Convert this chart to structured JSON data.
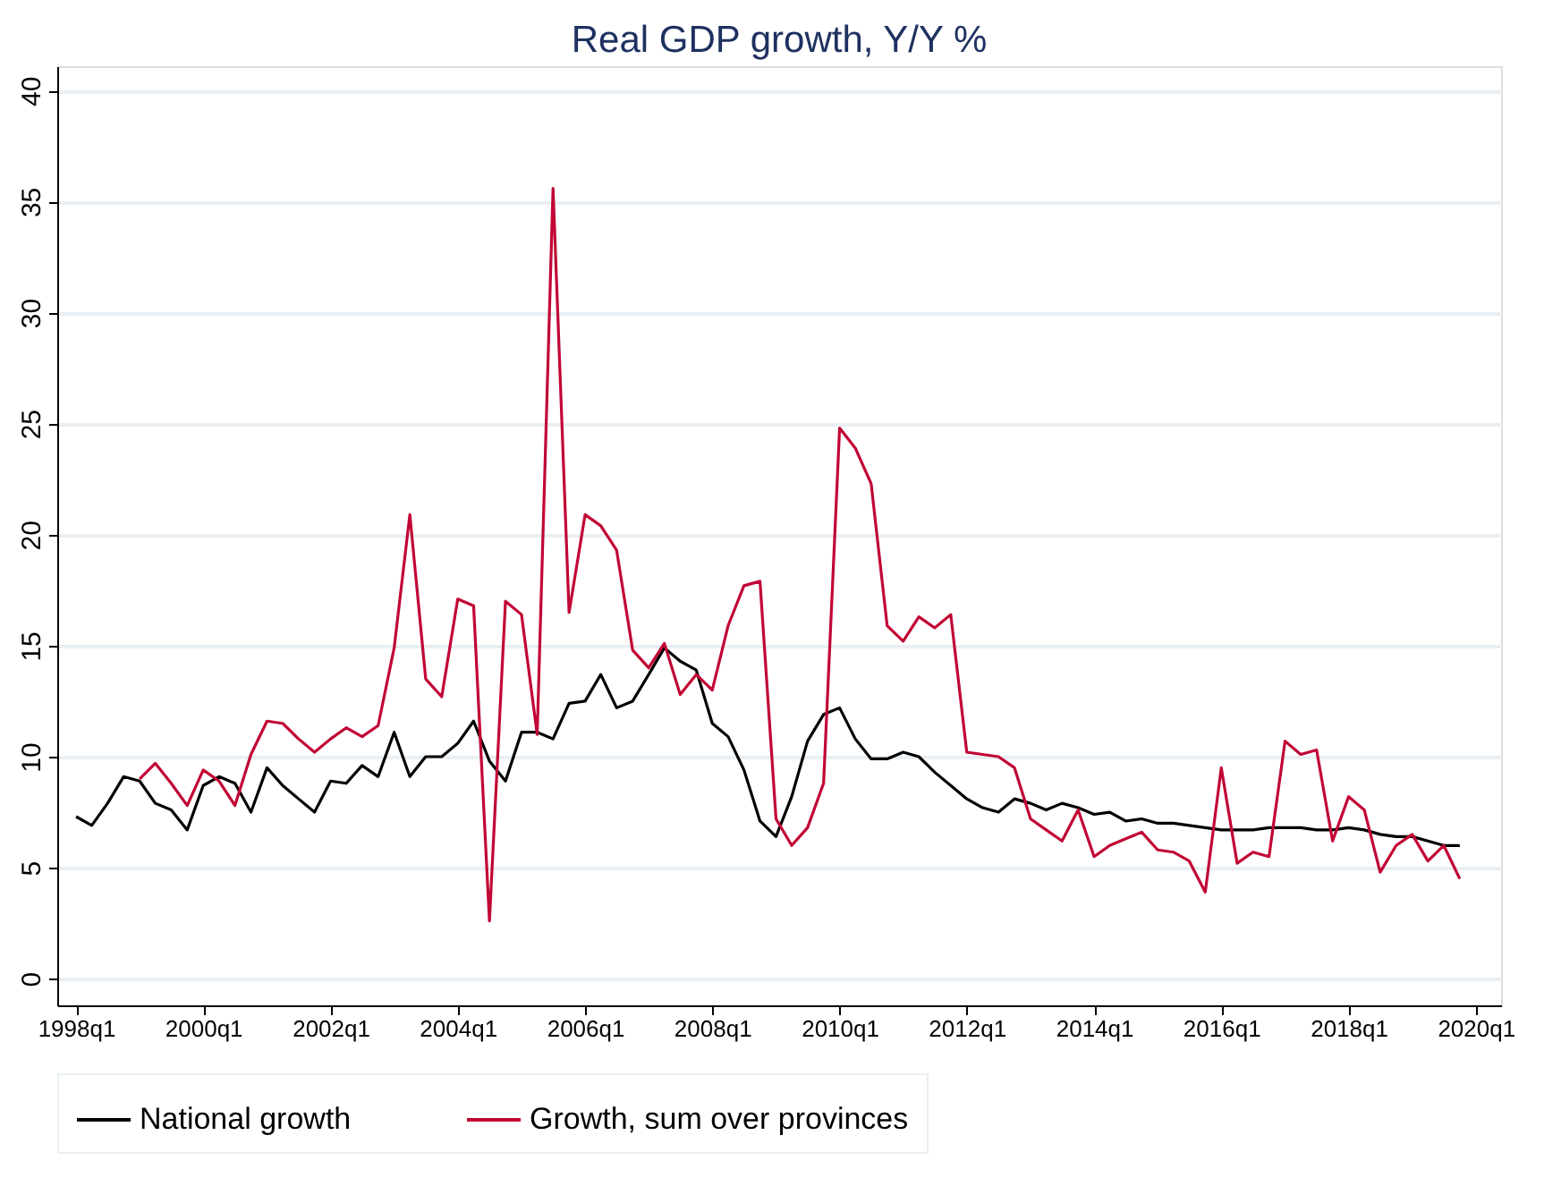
{
  "chart_data": {
    "type": "line",
    "title": "Real GDP growth, Y/Y %",
    "x": [
      "1998-01",
      "1998-04",
      "1998-07",
      "1998-10",
      "1999-01",
      "1999-04",
      "1999-07",
      "1999-10",
      "2000-01",
      "2000-04",
      "2000-07",
      "2000-10",
      "2001-01",
      "2001-04",
      "2001-07",
      "2001-10",
      "2002-01",
      "2002-04",
      "2002-07",
      "2002-10",
      "2003-01",
      "2003-04",
      "2003-07",
      "2003-10",
      "2004-01",
      "2004-04",
      "2004-07",
      "2004-10",
      "2005-01",
      "2005-04",
      "2005-07",
      "2005-10",
      "2006-01",
      "2006-04",
      "2006-07",
      "2006-10",
      "2007-01",
      "2007-04",
      "2007-07",
      "2007-10",
      "2008-01",
      "2008-04",
      "2008-07",
      "2008-10",
      "2009-01",
      "2009-04",
      "2009-07",
      "2009-10",
      "2010-01",
      "2010-04",
      "2010-07",
      "2010-10",
      "2011-01",
      "2011-04",
      "2011-07",
      "2011-10",
      "2012-01",
      "2012-04",
      "2012-07",
      "2012-10",
      "2013-01",
      "2013-04",
      "2013-07",
      "2013-10",
      "2014-01",
      "2014-04",
      "2014-07",
      "2014-10",
      "2015-01",
      "2015-04",
      "2015-07",
      "2015-10",
      "2016-01",
      "2016-04",
      "2016-07",
      "2016-10",
      "2017-01",
      "2017-04",
      "2017-07",
      "2017-10",
      "2018-01",
      "2018-04",
      "2018-07",
      "2018-10",
      "2019-01",
      "2019-04",
      "2019-07",
      "2019-10"
    ],
    "series": [
      {
        "name": "National growth",
        "color": "#000000",
        "values": [
          7.3,
          6.9,
          7.9,
          9.1,
          8.9,
          7.9,
          7.6,
          6.7,
          8.7,
          9.1,
          8.8,
          7.5,
          9.5,
          8.7,
          8.1,
          7.5,
          8.9,
          8.8,
          9.6,
          9.1,
          11.1,
          9.1,
          10.0,
          10.0,
          10.6,
          11.6,
          9.8,
          8.9,
          11.1,
          11.1,
          10.8,
          12.4,
          12.5,
          13.7,
          12.2,
          12.5,
          13.7,
          14.9,
          14.3,
          13.9,
          11.5,
          10.9,
          9.4,
          7.1,
          6.4,
          8.2,
          10.7,
          11.9,
          12.2,
          10.8,
          9.9,
          9.9,
          10.2,
          10.0,
          9.3,
          8.7,
          8.1,
          7.7,
          7.5,
          8.1,
          7.9,
          7.6,
          7.9,
          7.7,
          7.4,
          7.5,
          7.1,
          7.2,
          7.0,
          7.0,
          6.9,
          6.8,
          6.7,
          6.7,
          6.7,
          6.8,
          6.8,
          6.8,
          6.7,
          6.7,
          6.8,
          6.7,
          6.5,
          6.4,
          6.4,
          6.2,
          6.0,
          6.0
        ]
      },
      {
        "name": "Growth, sum over provinces",
        "color": "#c10534",
        "values": [
          null,
          null,
          null,
          null,
          9.0,
          9.7,
          8.8,
          7.8,
          9.4,
          8.9,
          7.8,
          10.1,
          11.6,
          11.5,
          10.8,
          10.2,
          10.8,
          11.3,
          10.9,
          11.4,
          14.9,
          20.9,
          13.5,
          12.7,
          17.1,
          16.8,
          2.6,
          17.0,
          16.4,
          11.0,
          35.6,
          16.5,
          20.9,
          20.4,
          19.3,
          14.8,
          14.0,
          15.1,
          12.8,
          13.7,
          13.0,
          15.9,
          17.7,
          17.9,
          7.2,
          6.0,
          6.8,
          8.8,
          24.8,
          23.9,
          22.3,
          15.9,
          15.2,
          16.3,
          15.8,
          16.4,
          10.2,
          10.1,
          10.0,
          9.5,
          7.2,
          6.7,
          6.2,
          7.6,
          5.5,
          6.0,
          6.3,
          6.6,
          5.8,
          5.7,
          5.3,
          3.9,
          9.5,
          5.2,
          5.7,
          5.5,
          10.7,
          10.1,
          10.3,
          6.2,
          8.2,
          7.6,
          4.8,
          6.0,
          6.5,
          5.3,
          6.0,
          4.5
        ]
      }
    ],
    "xlim": [
      "1997-09-15",
      "2020-05-25"
    ],
    "xticks": [
      {
        "value": "1998-01",
        "label": "1998q1"
      },
      {
        "value": "2000-01",
        "label": "2000q1"
      },
      {
        "value": "2002-01",
        "label": "2002q1"
      },
      {
        "value": "2004-01",
        "label": "2004q1"
      },
      {
        "value": "2006-01",
        "label": "2006q1"
      },
      {
        "value": "2008-01",
        "label": "2008q1"
      },
      {
        "value": "2010-01",
        "label": "2010q1"
      },
      {
        "value": "2012-01",
        "label": "2012q1"
      },
      {
        "value": "2014-01",
        "label": "2014q1"
      },
      {
        "value": "2016-01",
        "label": "2016q1"
      },
      {
        "value": "2018-01",
        "label": "2018q1"
      },
      {
        "value": "2020-01",
        "label": "2020q1"
      }
    ],
    "ylim": [
      -1.2,
      41.1
    ],
    "yticks": [
      0,
      5,
      10,
      15,
      20,
      25,
      30,
      35,
      40
    ],
    "grid": "y",
    "legend": "bottom",
    "marker": "none",
    "line_style": "solid"
  }
}
